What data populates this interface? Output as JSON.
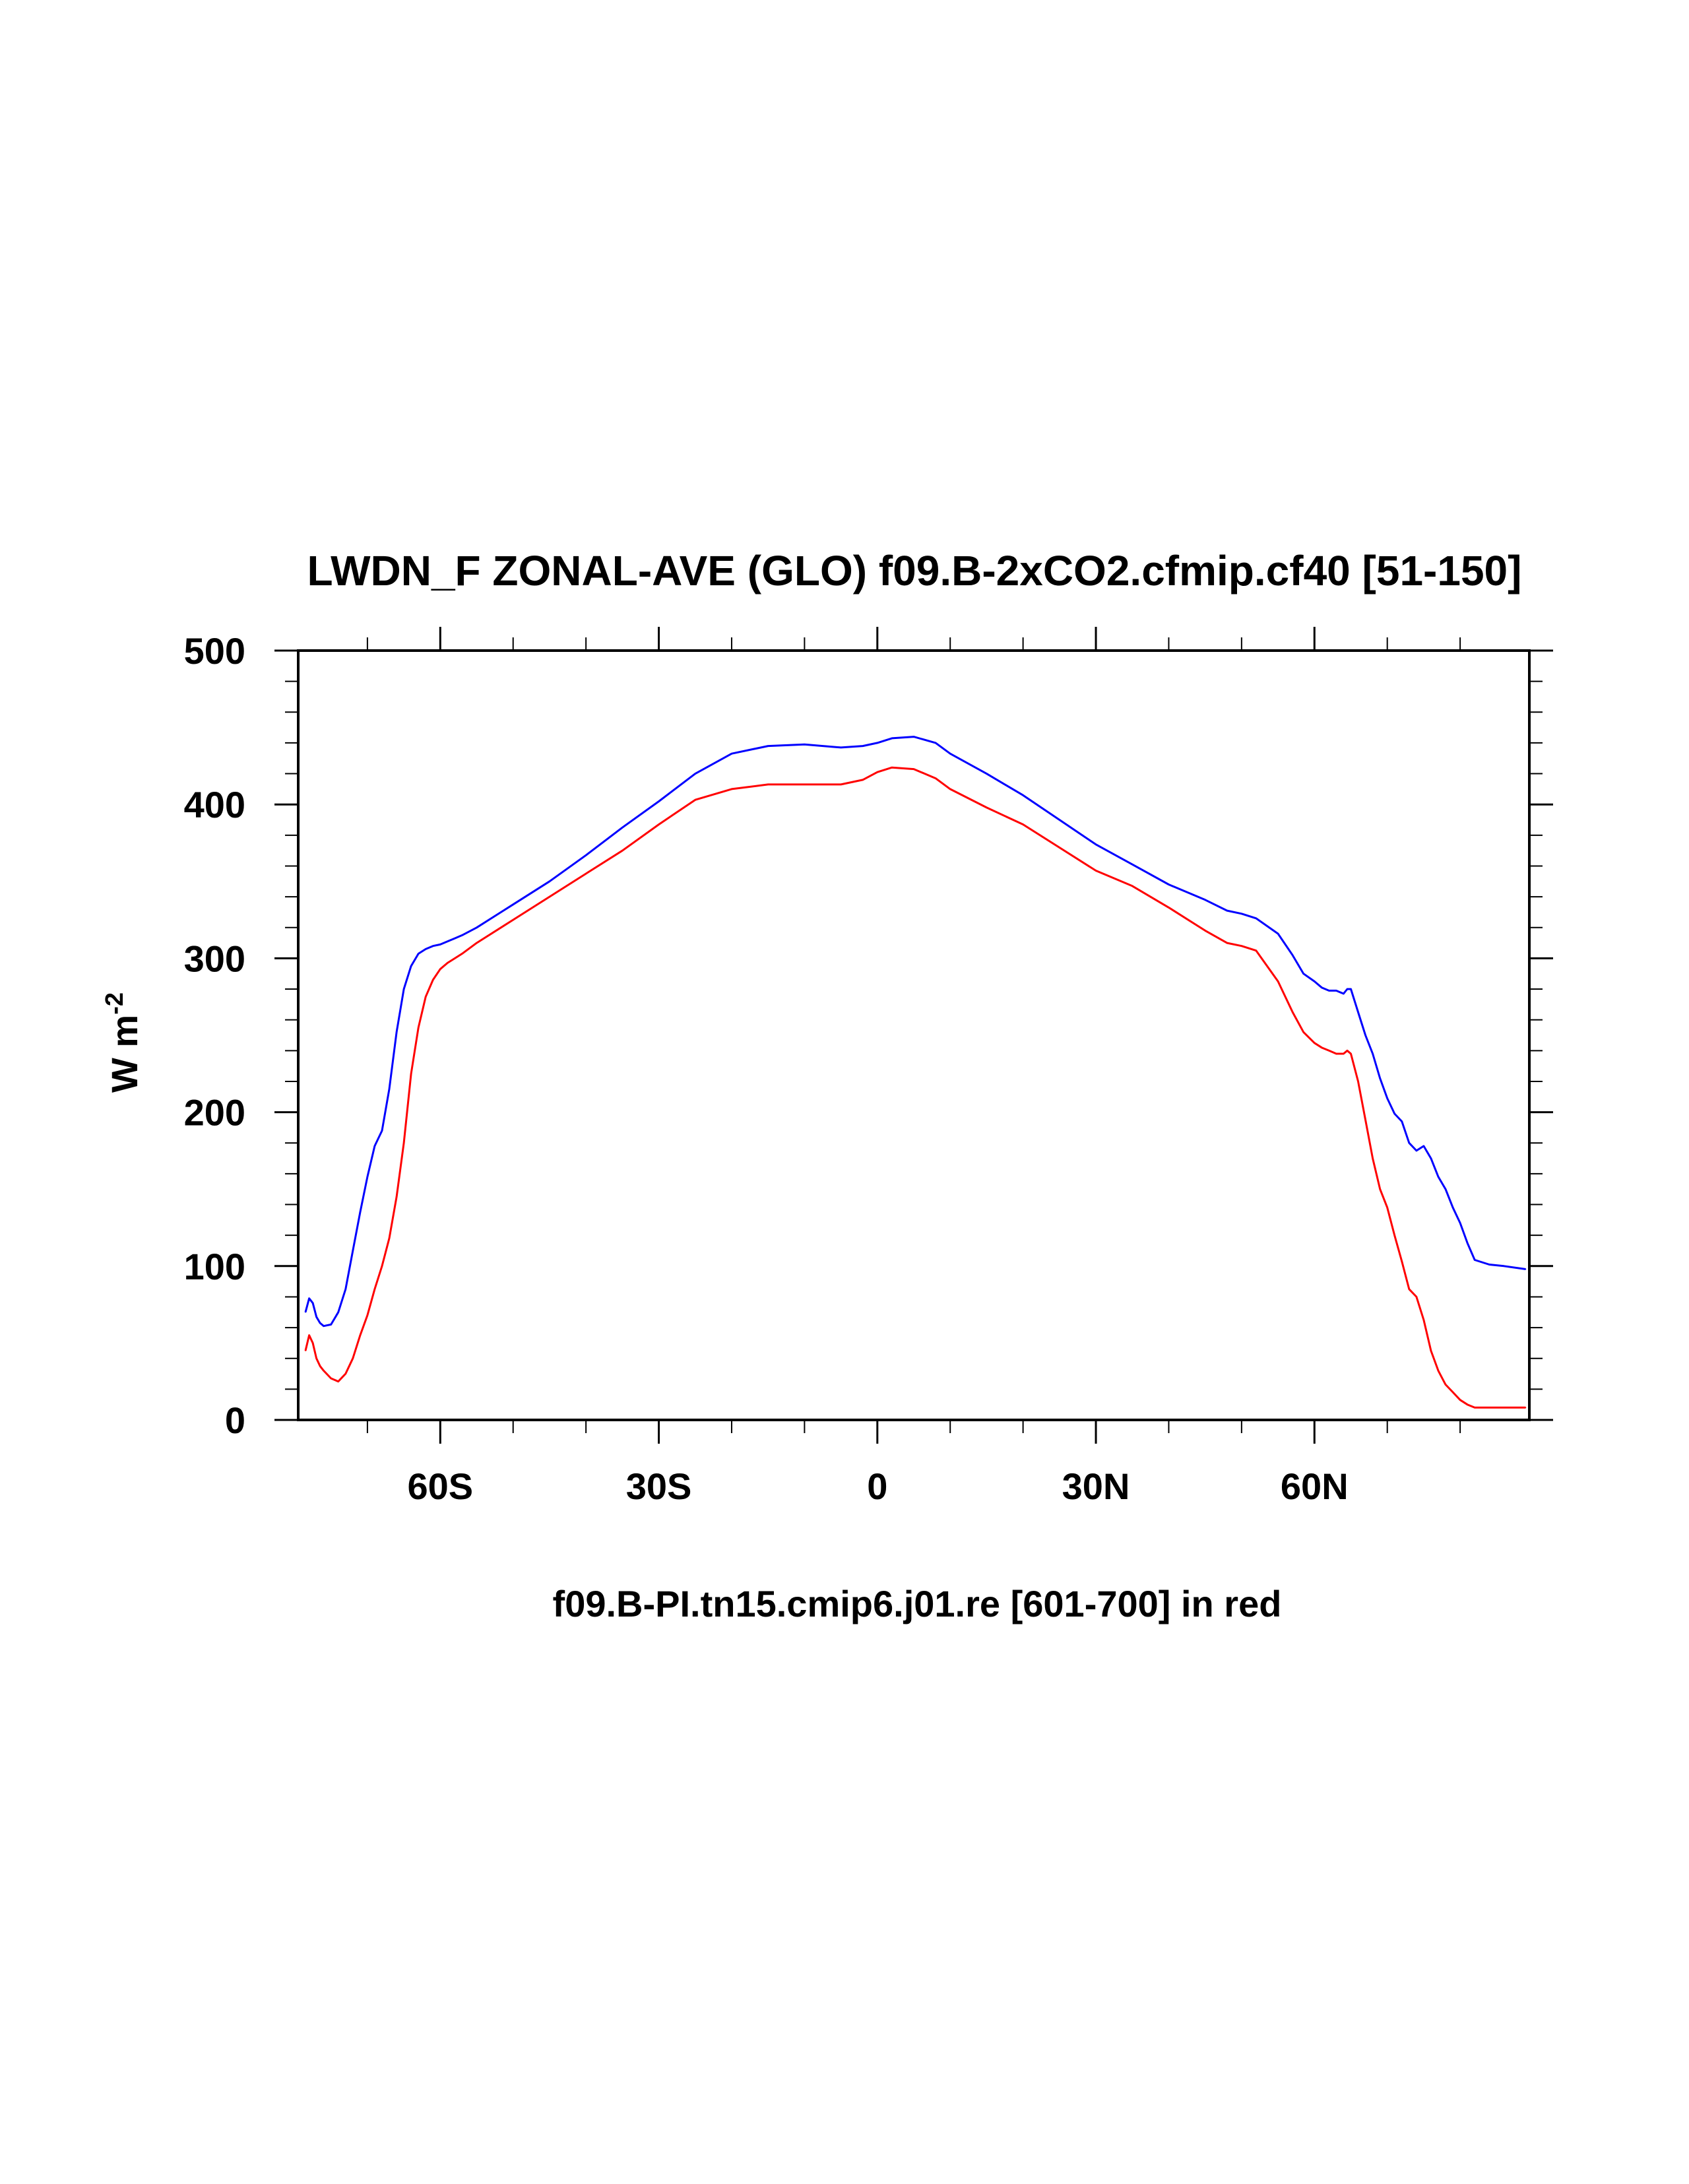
{
  "chart_data": {
    "type": "line",
    "title": "LWDN_F ZONAL-AVE (GLO) f09.B-2xCO2.cfmip.cf40 [51-150]",
    "xlabel": "f09.B-PI.tn15.cmip6.j01.re [601-700] in red",
    "ylabel": "W m",
    "ylabel_superscript": "-2",
    "xlim": [
      -79.5,
      89.5
    ],
    "ylim": [
      0,
      500
    ],
    "x_ticks": [
      {
        "value": -60,
        "label": "60S"
      },
      {
        "value": -30,
        "label": "30S"
      },
      {
        "value": 0,
        "label": "0"
      },
      {
        "value": 30,
        "label": "30N"
      },
      {
        "value": 60,
        "label": "60N"
      }
    ],
    "x_minor_ticks": [
      -70,
      -50,
      -40,
      -20,
      -10,
      10,
      20,
      40,
      50,
      70,
      80
    ],
    "y_ticks": [
      {
        "value": 0,
        "label": "0"
      },
      {
        "value": 100,
        "label": "100"
      },
      {
        "value": 200,
        "label": "200"
      },
      {
        "value": 300,
        "label": "300"
      },
      {
        "value": 400,
        "label": "400"
      },
      {
        "value": 500,
        "label": "500"
      }
    ],
    "y_minor_step": 20,
    "grid": false,
    "series": [
      {
        "color": "#0000ff",
        "x": [
          -78.5,
          -78.0,
          -77.5,
          -77.0,
          -76.5,
          -76.0,
          -75.0,
          -74.0,
          -73.0,
          -72.0,
          -71.0,
          -70.0,
          -69.0,
          -68.0,
          -67.0,
          -66.0,
          -65.0,
          -64.0,
          -63.0,
          -62.0,
          -61.0,
          -60.0,
          -59.0,
          -58.0,
          -57.0,
          -55.0,
          -50.0,
          -45.0,
          -40.0,
          -35.0,
          -30.0,
          -25.0,
          -20.0,
          -15.0,
          -10.0,
          -5.0,
          -2.0,
          0.0,
          2.0,
          5.0,
          8.0,
          10.0,
          15.0,
          20.0,
          25.0,
          30.0,
          35.0,
          40.0,
          45.0,
          48.0,
          50.0,
          52.0,
          55.0,
          57.0,
          58.5,
          60.0,
          61.0,
          62.0,
          63.0,
          64.0,
          64.5,
          65.0,
          66.0,
          67.0,
          68.0,
          69.0,
          70.0,
          71.0,
          72.0,
          73.0,
          74.0,
          75.0,
          76.0,
          77.0,
          78.0,
          79.0,
          80.0,
          81.0,
          82.0,
          84.0,
          86.0,
          89.0
        ],
        "y": [
          70,
          79,
          76,
          67,
          63,
          61,
          62,
          70,
          85,
          110,
          135,
          158,
          178,
          188,
          215,
          252,
          280,
          295,
          303,
          306,
          308,
          309,
          311,
          313,
          315,
          320,
          335,
          350,
          367,
          385,
          402,
          420,
          433,
          438,
          439,
          437,
          438,
          440,
          443,
          444,
          440,
          433,
          420,
          406,
          390,
          374,
          361,
          348,
          338,
          331,
          329,
          326,
          316,
          302,
          290,
          285,
          281,
          279,
          279,
          277,
          280,
          280,
          265,
          250,
          238,
          222,
          209,
          199,
          194,
          180,
          175,
          178,
          170,
          158,
          150,
          138,
          128,
          115,
          104,
          101,
          100,
          98
        ]
      },
      {
        "color": "#ff0000",
        "x": [
          -78.5,
          -78.0,
          -77.5,
          -77.0,
          -76.5,
          -76.0,
          -75.0,
          -74.0,
          -73.0,
          -72.0,
          -71.0,
          -70.0,
          -69.0,
          -68.0,
          -67.0,
          -66.0,
          -65.0,
          -64.0,
          -63.0,
          -62.0,
          -61.0,
          -60.0,
          -59.0,
          -58.0,
          -57.0,
          -55.0,
          -50.0,
          -45.0,
          -40.0,
          -35.0,
          -30.0,
          -25.0,
          -20.0,
          -15.0,
          -10.0,
          -5.0,
          -2.0,
          0.0,
          2.0,
          5.0,
          8.0,
          10.0,
          15.0,
          20.0,
          25.0,
          30.0,
          35.0,
          40.0,
          45.0,
          48.0,
          50.0,
          52.0,
          55.0,
          57.0,
          58.5,
          60.0,
          61.0,
          62.0,
          63.0,
          64.0,
          64.5,
          65.0,
          66.0,
          67.0,
          68.0,
          69.0,
          70.0,
          71.0,
          72.0,
          73.0,
          74.0,
          75.0,
          76.0,
          77.0,
          78.0,
          79.0,
          80.0,
          81.0,
          82.0,
          84.0,
          86.0,
          89.0
        ],
        "y": [
          45,
          55,
          50,
          40,
          35,
          32,
          27,
          25,
          30,
          40,
          55,
          68,
          85,
          100,
          118,
          145,
          180,
          225,
          255,
          275,
          286,
          293,
          297,
          300,
          303,
          310,
          325,
          340,
          355,
          370,
          387,
          403,
          410,
          413,
          413,
          413,
          416,
          421,
          424,
          423,
          417,
          410,
          398,
          387,
          372,
          357,
          347,
          333,
          318,
          310,
          308,
          305,
          285,
          265,
          252,
          245,
          242,
          240,
          238,
          238,
          240,
          238,
          220,
          195,
          170,
          150,
          138,
          120,
          103,
          85,
          80,
          65,
          45,
          32,
          23,
          18,
          13,
          10,
          8,
          8,
          8,
          8
        ]
      }
    ]
  }
}
